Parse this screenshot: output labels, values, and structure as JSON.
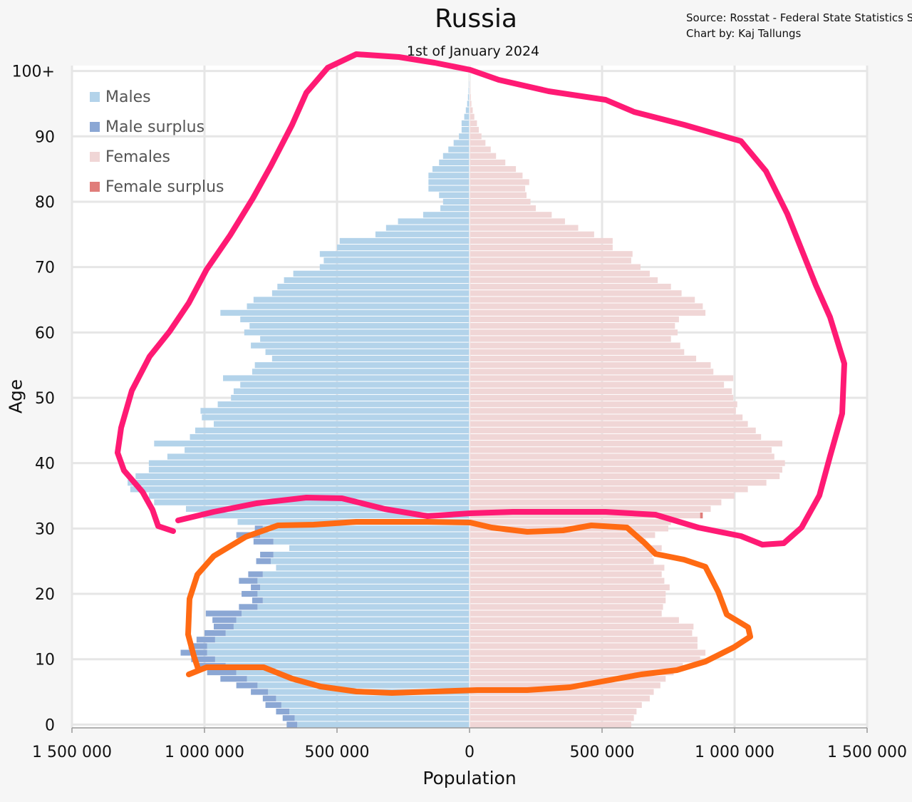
{
  "chart_data": {
    "type": "bar",
    "orientation": "horizontal",
    "title": "Russia",
    "subtitle": "1st of January 2024",
    "source_lines": [
      "Source: Rosstat - Federal State Statistics Service",
      "Chart by: Kaj Tallungs"
    ],
    "xlabel": "Population",
    "ylabel": "Age",
    "xlim": [
      -1500000,
      1500000
    ],
    "ylim": [
      0,
      100
    ],
    "x_ticks": [
      {
        "value": -1500000,
        "label": "1 500 000"
      },
      {
        "value": -1000000,
        "label": "1 000 000"
      },
      {
        "value": -500000,
        "label": "500 000"
      },
      {
        "value": 0,
        "label": "0"
      },
      {
        "value": 500000,
        "label": "500 000"
      },
      {
        "value": 1000000,
        "label": "1 000 000"
      },
      {
        "value": 1500000,
        "label": "1 500 000"
      }
    ],
    "y_ticks": [
      {
        "value": 0,
        "label": "0"
      },
      {
        "value": 10,
        "label": "10"
      },
      {
        "value": 20,
        "label": "20"
      },
      {
        "value": 30,
        "label": "30"
      },
      {
        "value": 40,
        "label": "40"
      },
      {
        "value": 50,
        "label": "50"
      },
      {
        "value": 60,
        "label": "60"
      },
      {
        "value": 70,
        "label": "70"
      },
      {
        "value": 80,
        "label": "80"
      },
      {
        "value": 90,
        "label": "90"
      },
      {
        "value": 100,
        "label": "100+"
      }
    ],
    "grid": true,
    "legend_position": "top-left",
    "legend": [
      {
        "label": "Males",
        "color": "#b3d3ea"
      },
      {
        "label": "Male surplus",
        "color": "#8ba7d4"
      },
      {
        "label": "Females",
        "color": "#f0d6d6"
      },
      {
        "label": "Female surplus",
        "color": "#e07d7a"
      }
    ],
    "colors": {
      "males": "#b3d3ea",
      "male_surplus": "#8ba7d4",
      "females": "#f0d6d6",
      "female_surplus": "#e07d7a"
    },
    "ages": [
      0,
      1,
      2,
      3,
      4,
      5,
      6,
      7,
      8,
      9,
      10,
      11,
      12,
      13,
      14,
      15,
      16,
      17,
      18,
      19,
      20,
      21,
      22,
      23,
      24,
      25,
      26,
      27,
      28,
      29,
      30,
      31,
      32,
      33,
      34,
      35,
      36,
      37,
      38,
      39,
      40,
      41,
      42,
      43,
      44,
      45,
      46,
      47,
      48,
      49,
      50,
      51,
      52,
      53,
      54,
      55,
      56,
      57,
      58,
      59,
      60,
      61,
      62,
      63,
      64,
      65,
      66,
      67,
      68,
      69,
      70,
      71,
      72,
      73,
      74,
      75,
      76,
      77,
      78,
      79,
      80,
      81,
      82,
      83,
      84,
      85,
      86,
      87,
      88,
      89,
      90,
      91,
      92,
      93,
      94,
      95,
      96,
      97,
      98,
      99,
      100
    ],
    "series": [
      {
        "name": "Males",
        "values": [
          650000,
          660000,
          680000,
          710000,
          730000,
          760000,
          800000,
          840000,
          880000,
          920000,
          960000,
          990000,
          990000,
          960000,
          920000,
          890000,
          880000,
          860000,
          800000,
          780000,
          800000,
          790000,
          800000,
          780000,
          730000,
          750000,
          740000,
          680000,
          740000,
          790000,
          780000,
          875000,
          1005000,
          1070000,
          1190000,
          1210000,
          1280000,
          1290000,
          1260000,
          1210000,
          1210000,
          1140000,
          1075000,
          1190000,
          1055000,
          1035000,
          965000,
          1010000,
          1015000,
          950000,
          900000,
          890000,
          865000,
          930000,
          820000,
          810000,
          745000,
          770000,
          825000,
          790000,
          850000,
          830000,
          865000,
          940000,
          840000,
          815000,
          745000,
          725000,
          700000,
          665000,
          565000,
          550000,
          565000,
          500000,
          490000,
          355000,
          315000,
          270000,
          175000,
          110000,
          100000,
          115000,
          155000,
          155000,
          155000,
          140000,
          115000,
          100000,
          80000,
          60000,
          40000,
          30000,
          30000,
          20000,
          14000,
          9000,
          6000,
          4000,
          2500,
          1500,
          1000
        ]
      },
      {
        "name": "Females",
        "values": [
          610000,
          620000,
          630000,
          650000,
          680000,
          695000,
          720000,
          740000,
          770000,
          805000,
          870000,
          890000,
          860000,
          860000,
          840000,
          845000,
          790000,
          725000,
          730000,
          740000,
          740000,
          755000,
          735000,
          725000,
          735000,
          695000,
          690000,
          725000,
          665000,
          700000,
          750000,
          760000,
          870000,
          910000,
          950000,
          1000000,
          1050000,
          1120000,
          1170000,
          1180000,
          1190000,
          1150000,
          1140000,
          1180000,
          1100000,
          1080000,
          1050000,
          1030000,
          1005000,
          1010000,
          995000,
          990000,
          960000,
          995000,
          920000,
          910000,
          855000,
          810000,
          795000,
          760000,
          785000,
          775000,
          790000,
          890000,
          880000,
          850000,
          800000,
          760000,
          710000,
          680000,
          645000,
          610000,
          615000,
          540000,
          540000,
          470000,
          410000,
          360000,
          310000,
          250000,
          230000,
          215000,
          210000,
          225000,
          200000,
          175000,
          135000,
          100000,
          80000,
          60000,
          45000,
          35000,
          28000,
          18000,
          12000,
          7000,
          5000,
          3000,
          2000,
          1000,
          500
        ]
      },
      {
        "name": "Male surplus",
        "values": [
          40000,
          45000,
          50000,
          60000,
          50000,
          65000,
          80000,
          100000,
          110000,
          115000,
          90000,
          100000,
          70000,
          70000,
          80000,
          75000,
          90000,
          135000,
          70000,
          40000,
          60000,
          35000,
          70000,
          55000,
          0,
          55000,
          50000,
          0,
          75000,
          90000,
          30000,
          0,
          0,
          0,
          0,
          0,
          0,
          0,
          0,
          0,
          0,
          0,
          0,
          0,
          0,
          0,
          0,
          0,
          0,
          0,
          0,
          0,
          0,
          0,
          0,
          0,
          0,
          0,
          0,
          0,
          0,
          0,
          0,
          0,
          0,
          0,
          0,
          0,
          0,
          0,
          0,
          0,
          0,
          0,
          0,
          0,
          0,
          0,
          0,
          0,
          0,
          0,
          0,
          0,
          0,
          0,
          0,
          0,
          0,
          0,
          0,
          0,
          0,
          0,
          0,
          0,
          0,
          0,
          0,
          0,
          0
        ]
      },
      {
        "name": "Female surplus",
        "values": [
          0,
          0,
          0,
          0,
          0,
          0,
          0,
          0,
          0,
          0,
          0,
          0,
          0,
          0,
          0,
          0,
          0,
          0,
          0,
          0,
          0,
          0,
          0,
          0,
          0,
          0,
          0,
          0,
          0,
          0,
          0,
          0,
          10000,
          0,
          0,
          0,
          0,
          0,
          0,
          0,
          0,
          0,
          0,
          0,
          0,
          0,
          0,
          0,
          0,
          0,
          0,
          0,
          0,
          0,
          0,
          0,
          0,
          0,
          0,
          0,
          0,
          0,
          0,
          0,
          0,
          0,
          0,
          0,
          0,
          0,
          0,
          0,
          0,
          0,
          0,
          0,
          0,
          0,
          0,
          0,
          0,
          0,
          0,
          0,
          0,
          0,
          0,
          0,
          0,
          0,
          0,
          0,
          0,
          0,
          0,
          0,
          0,
          0,
          0,
          0,
          0
        ]
      }
    ]
  }
}
